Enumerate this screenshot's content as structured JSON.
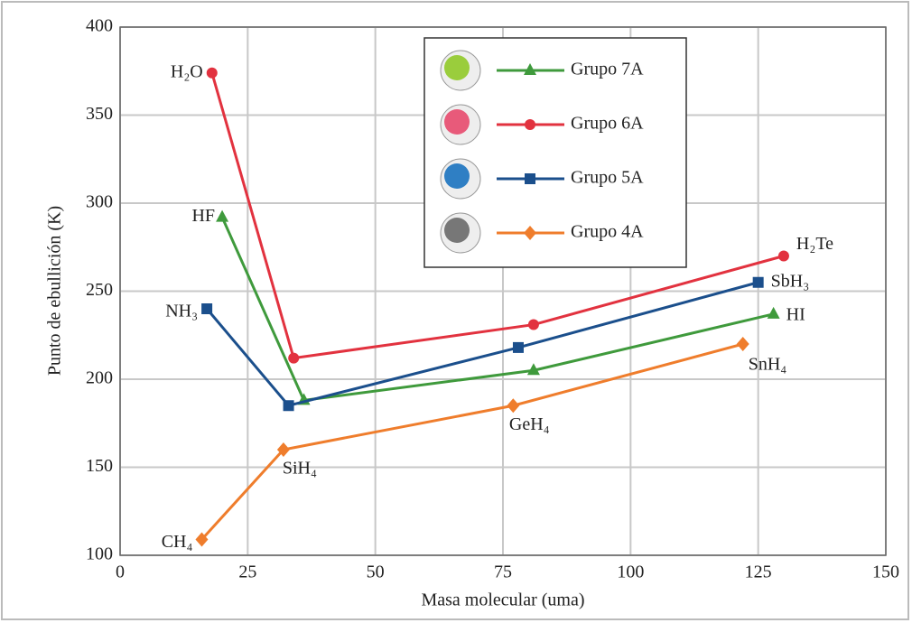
{
  "chart_data": {
    "type": "line",
    "xlabel": "Masa molecular (uma)",
    "ylabel": "Punto de ebullición (K)",
    "xlim": [
      0,
      150
    ],
    "xticks": [
      0,
      25,
      50,
      75,
      100,
      125,
      150
    ],
    "ylim": [
      100,
      400
    ],
    "yticks": [
      100,
      150,
      200,
      250,
      300,
      350,
      400
    ],
    "grid": true,
    "legend": "upper center",
    "series": [
      {
        "name": "Grupo 7A",
        "color": "#3f9a3c",
        "marker": "triangle",
        "x": [
          20,
          36,
          81,
          128
        ],
        "values": [
          292,
          188,
          205,
          237
        ],
        "labels": [
          "HF",
          null,
          null,
          "HI"
        ]
      },
      {
        "name": "Grupo 6A",
        "color": "#e2323f",
        "marker": "circle",
        "x": [
          18,
          34,
          81,
          130
        ],
        "values": [
          374,
          212,
          231,
          270
        ],
        "labels": [
          "H₂O",
          null,
          null,
          "H₂Te"
        ]
      },
      {
        "name": "Grupo 5A",
        "color": "#1b4f8c",
        "marker": "square",
        "x": [
          17,
          33,
          78,
          125
        ],
        "values": [
          240,
          185,
          218,
          255
        ],
        "labels": [
          "NH₃",
          null,
          null,
          "SbH₃"
        ]
      },
      {
        "name": "Grupo 4A",
        "color": "#ef7d2c",
        "marker": "diamond",
        "x": [
          16,
          32,
          77,
          122
        ],
        "values": [
          109,
          160,
          185,
          220
        ],
        "labels": [
          "CH₄",
          "SiH₄",
          "GeH₄",
          "SnH₄"
        ]
      }
    ]
  }
}
